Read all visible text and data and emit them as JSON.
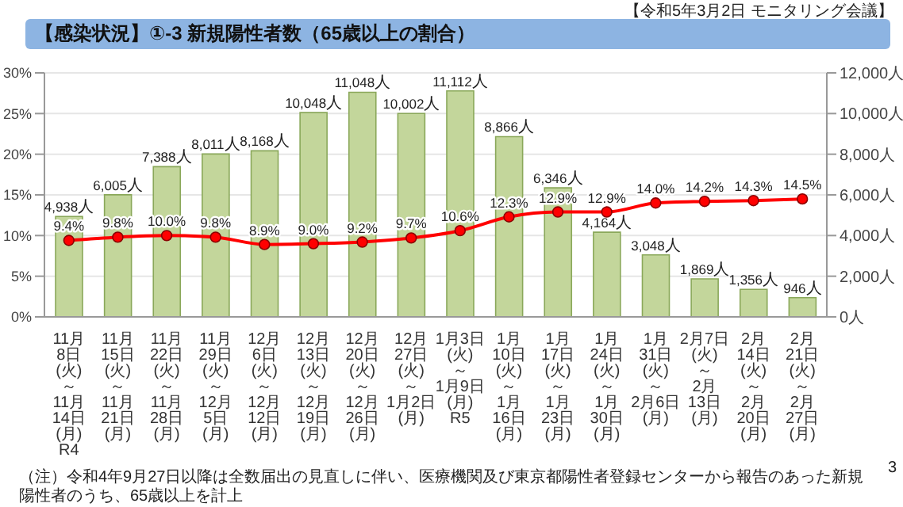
{
  "chart_data": {
    "type": "bar",
    "title": "【感染状況】①-3 新規陽性者数（65歳以上の割合）",
    "subtitle": "【令和5年3月2日 モニタリング会議】",
    "annotations": [
      "（注）令和4年9月27日以降は全数届出の見直しに伴い、医療機関及び東京都陽性者登録センターから報告のあった新規陽性者のうち、65歳以上を計上",
      "3"
    ],
    "categories": [
      "11月8日\n(火)\n～\n11月14日\n(月)\nR4",
      "11月15日\n(火)\n～\n11月21日\n(月)",
      "11月22日\n(火)\n～\n11月28日\n(月)",
      "11月29日\n(火)\n～\n12月5日\n(月)",
      "12月6日\n(火)\n～\n12月12日\n(月)",
      "12月13日\n(火)\n～\n12月19日\n(月)",
      "12月20日\n(火)\n～\n12月26日\n(月)",
      "12月27日\n(火)\n～\n1月2日\n(月)",
      "1月3日\n(火)\n～\n1月9日\n(月)\nR5",
      "1月10日\n(火)\n～\n1月16日\n(月)",
      "1月17日\n(火)\n～\n1月23日\n(月)",
      "1月24日\n(火)\n～\n1月30日\n(月)",
      "1月31日\n(火)\n～\n2月6日\n(月)",
      "2月7日\n(火)\n～\n2月13日\n(月)",
      "2月14日\n(火)\n～\n2月20日\n(月)",
      "2月21日\n(火)\n～\n2月27日\n(月)"
    ],
    "series": [
      {
        "axis": "y2",
        "color": "#c3d69b",
        "values": [
          4938,
          6005,
          7388,
          8011,
          8168,
          10048,
          11048,
          10002,
          11112,
          8866,
          6346,
          4164,
          3048,
          1869,
          1356,
          946
        ],
        "value_labels": [
          "4,938人",
          "6,005人",
          "7,388人",
          "8,011人",
          "8,168人",
          "10,048人",
          "11,048人",
          "10,002人",
          "11,112人",
          "8,866人",
          "6,346人",
          "4,164人",
          "3,048人",
          "1,869人",
          "1,356人",
          "946人"
        ]
      },
      {
        "type": "line",
        "color": "#ff0000",
        "values": [
          9.4,
          9.8,
          10.0,
          9.8,
          8.9,
          9.0,
          9.2,
          9.7,
          10.6,
          12.3,
          12.9,
          12.9,
          14.0,
          14.2,
          14.3,
          14.5
        ],
        "value_labels": [
          "9.4%",
          "9.8%",
          "10.0%",
          "9.8%",
          "8.9%",
          "9.0%",
          "9.2%",
          "9.7%",
          "10.6%",
          "12.3%",
          "12.9%",
          "12.9%",
          "14.0%",
          "14.2%",
          "14.3%",
          "14.5%"
        ]
      }
    ],
    "ylim": [
      0,
      30
    ],
    "yticks": [
      {
        "value": 0,
        "label": "0%"
      },
      {
        "value": 5,
        "label": "5%"
      },
      {
        "value": 10,
        "label": "10%"
      },
      {
        "value": 15,
        "label": "15%"
      },
      {
        "value": 20,
        "label": "20%"
      },
      {
        "value": 25,
        "label": "25%"
      },
      {
        "value": 30,
        "label": "30%"
      }
    ],
    "y2lim": [
      0,
      12000
    ],
    "y2ticks": [
      {
        "value": 0,
        "label": "0人"
      },
      {
        "value": 2000,
        "label": "2,000人"
      },
      {
        "value": 4000,
        "label": "4,000人"
      },
      {
        "value": 6000,
        "label": "6,000人"
      },
      {
        "value": 8000,
        "label": "8,000人"
      },
      {
        "value": 10000,
        "label": "10,000人"
      },
      {
        "value": 12000,
        "label": "12,000人"
      }
    ],
    "grid": "y",
    "legend": false,
    "marker": "circle",
    "line_style": "solid"
  }
}
